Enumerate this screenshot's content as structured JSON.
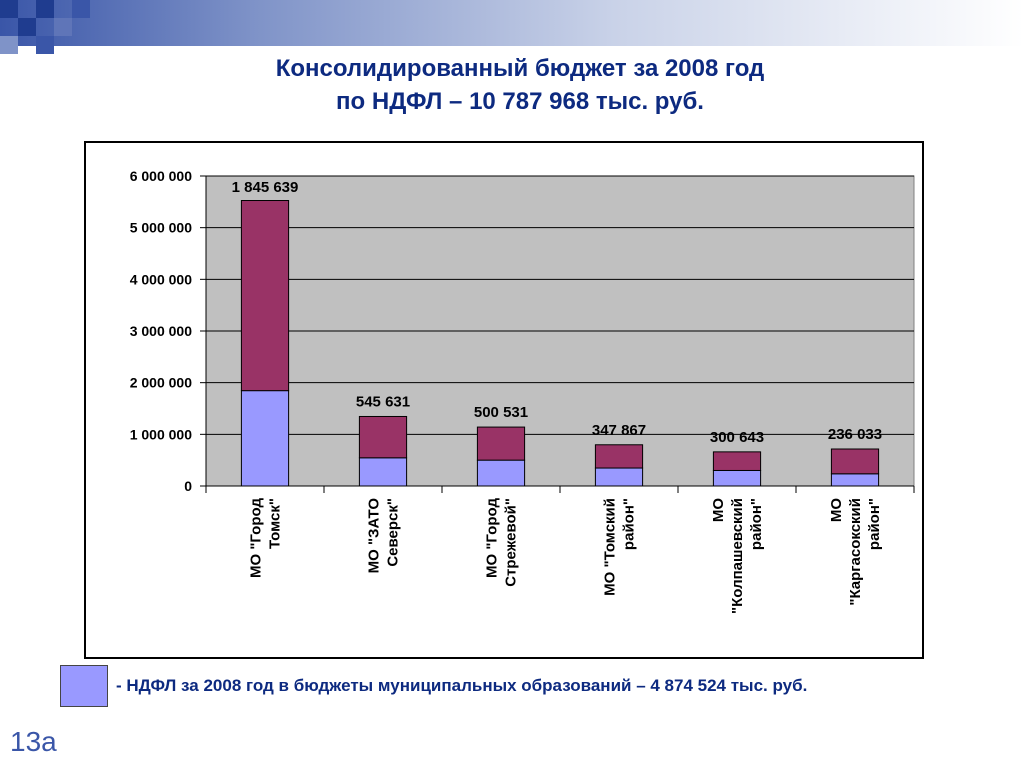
{
  "slide": {
    "title_line1": "Консолидированный бюджет за 2008 год",
    "title_line2": "по НДФЛ – 10 787 968 тыс. руб.",
    "legend_text": "- НДФЛ за 2008 год в бюджеты муниципальных образований – 4 874 524 тыс. руб.",
    "slide_number": "13а",
    "colors": {
      "title": "#0d2a80",
      "lower_series": "#9999ff",
      "upper_series": "#993366",
      "plot_background": "#c0c0c0"
    }
  },
  "chart_data": {
    "type": "bar",
    "stacked": true,
    "categories": [
      [
        "МО \"Город",
        "Томск\""
      ],
      [
        "МО \"ЗАТО",
        "Северск\""
      ],
      [
        "МО \"Город",
        "Стрежевой\""
      ],
      [
        "МО \"Томский",
        "район\""
      ],
      [
        "МО",
        "\"Колпашевский",
        "район\""
      ],
      [
        "МО",
        "\"Каргасокский",
        "район\""
      ]
    ],
    "series": [
      {
        "values": [
          1845639,
          545631,
          500531,
          347867,
          300643,
          236033
        ]
      },
      {
        "values": [
          3680000,
          800000,
          640000,
          450000,
          360000,
          480000
        ]
      }
    ],
    "data_labels": [
      "1 845 639",
      "545 631",
      "500 531",
      "347 867",
      "300 643",
      "236 033"
    ],
    "ylim": [
      0,
      6000000
    ],
    "yticks": [
      0,
      1000000,
      2000000,
      3000000,
      4000000,
      5000000,
      6000000
    ],
    "ytick_labels": [
      "0",
      "1 000 000",
      "2 000 000",
      "3 000 000",
      "4 000 000",
      "5 000 000",
      "6 000 000"
    ],
    "grid": true,
    "legend": "bottom-left"
  }
}
